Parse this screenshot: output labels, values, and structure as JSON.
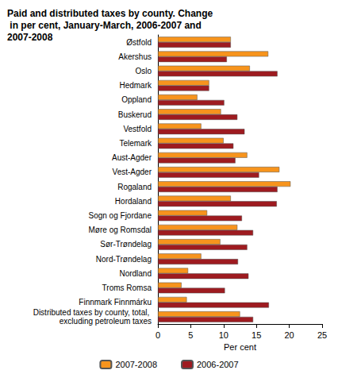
{
  "chart_data": {
    "type": "bar",
    "orientation": "horizontal",
    "title": "Paid and distributed taxes by county. Change in per cent, January-March, 2006-2007 and 2007-2008",
    "x_label": "Per cent",
    "categories": [
      "Østfold",
      "Akershus",
      "Oslo",
      "Hedmark",
      "Oppland",
      "Buskerud",
      "Vestfold",
      "Telemark",
      "Aust-Agder",
      "Vest-Agder",
      "Rogaland",
      "Hordaland",
      "Sogn og Fjordane",
      "Møre og Romsdal",
      "Sør-Trøndelag",
      "Nord-Trøndelag",
      "Nordland",
      "Troms Romsa",
      "Finnmark Finnmárku",
      "Distributed taxes by county, total, excluding petroleum taxes"
    ],
    "series": [
      {
        "name": "2007-2008",
        "color": "#f7941d",
        "values": [
          11.1,
          16.8,
          14.0,
          7.8,
          6.0,
          9.6,
          6.6,
          10.0,
          13.6,
          18.5,
          20.2,
          11.1,
          7.5,
          12.1,
          9.5,
          6.6,
          4.6,
          3.6,
          4.4,
          12.5
        ]
      },
      {
        "name": "2006-2007",
        "color": "#9e1b20",
        "values": [
          11.1,
          10.5,
          18.2,
          7.8,
          10.1,
          12.1,
          13.2,
          11.5,
          11.8,
          15.4,
          18.2,
          18.1,
          12.8,
          14.5,
          13.6,
          12.2,
          13.8,
          10.2,
          16.9,
          14.5
        ]
      }
    ],
    "xlim": [
      0,
      25
    ],
    "xticks": [
      0,
      5,
      10,
      15,
      20,
      25
    ],
    "grid": false,
    "legend": "bottom"
  }
}
